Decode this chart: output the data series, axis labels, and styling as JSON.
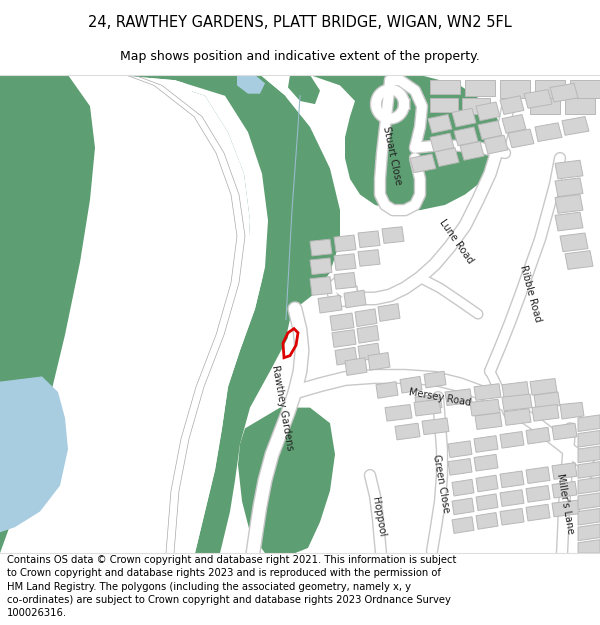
{
  "title": "24, RAWTHEY GARDENS, PLATT BRIDGE, WIGAN, WN2 5FL",
  "subtitle": "Map shows position and indicative extent of the property.",
  "footer": "Contains OS data © Crown copyright and database right 2021. This information is subject\nto Crown copyright and database rights 2023 and is reproduced with the permission of\nHM Land Registry. The polygons (including the associated geometry, namely x, y\nco-ordinates) are subject to Crown copyright and database rights 2023 Ordnance Survey\n100026316.",
  "green": "#5d9e72",
  "blue": "#a8cce0",
  "white": "#ffffff",
  "bg": "#f2f2f2",
  "bld": "#d4d4d4",
  "bld_e": "#b8b8b8",
  "road_e": "#c8c8c8",
  "red": "#dd0000",
  "title_fs": 10.5,
  "sub_fs": 9,
  "foot_fs": 7.2
}
